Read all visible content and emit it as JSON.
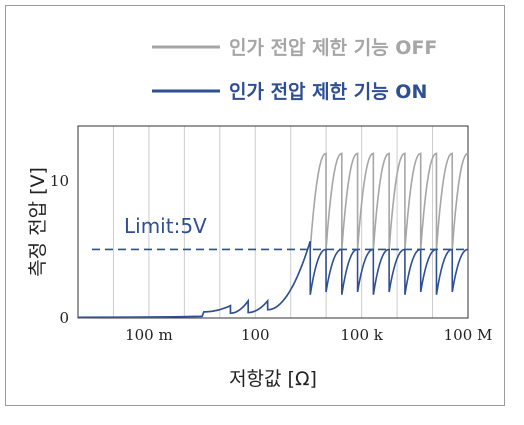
{
  "chart_data": {
    "type": "line",
    "xlabel": "저항값 [Ω]",
    "ylabel": "측정 전압 [V]",
    "x_scale": "log",
    "xlim": [
      0.001,
      100000000
    ],
    "ylim": [
      0,
      14
    ],
    "x_ticks": [
      {
        "value": 0.1,
        "label": "100 m"
      },
      {
        "value": 100,
        "label": "100"
      },
      {
        "value": 100000,
        "label": "100 k"
      },
      {
        "value": 100000000,
        "label": "100 M"
      }
    ],
    "y_ticks": [
      {
        "value": 0,
        "label": "0"
      },
      {
        "value": 10,
        "label": "10"
      }
    ],
    "grid": true,
    "legend_position": "top-right",
    "annotations": [
      {
        "text": "Limit:5V",
        "y": 5,
        "style": "dashed"
      }
    ],
    "series": [
      {
        "name": "인가 전압 제한 기능 OFF",
        "color": "#a6a6a6",
        "description_points": [
          [
            0.001,
            0.05
          ],
          [
            1,
            0.1
          ],
          [
            10,
            0.3
          ],
          [
            30,
            1.2
          ],
          [
            100,
            1.2
          ],
          [
            300,
            2.0
          ],
          [
            1000,
            3.5
          ],
          [
            3000,
            6.0
          ],
          [
            10000,
            12.0
          ],
          [
            20000,
            12.0
          ]
        ]
      },
      {
        "name": "인가 전압 제한 기능 ON",
        "color": "#2f4f93",
        "description_points": [
          [
            0.001,
            0.05
          ],
          [
            1,
            0.1
          ],
          [
            10,
            0.3
          ],
          [
            30,
            1.2
          ],
          [
            100,
            1.2
          ],
          [
            300,
            2.0
          ],
          [
            1000,
            3.5
          ],
          [
            3000,
            5.0
          ],
          [
            10000,
            1.8
          ],
          [
            20000,
            5.0
          ]
        ]
      }
    ]
  }
}
